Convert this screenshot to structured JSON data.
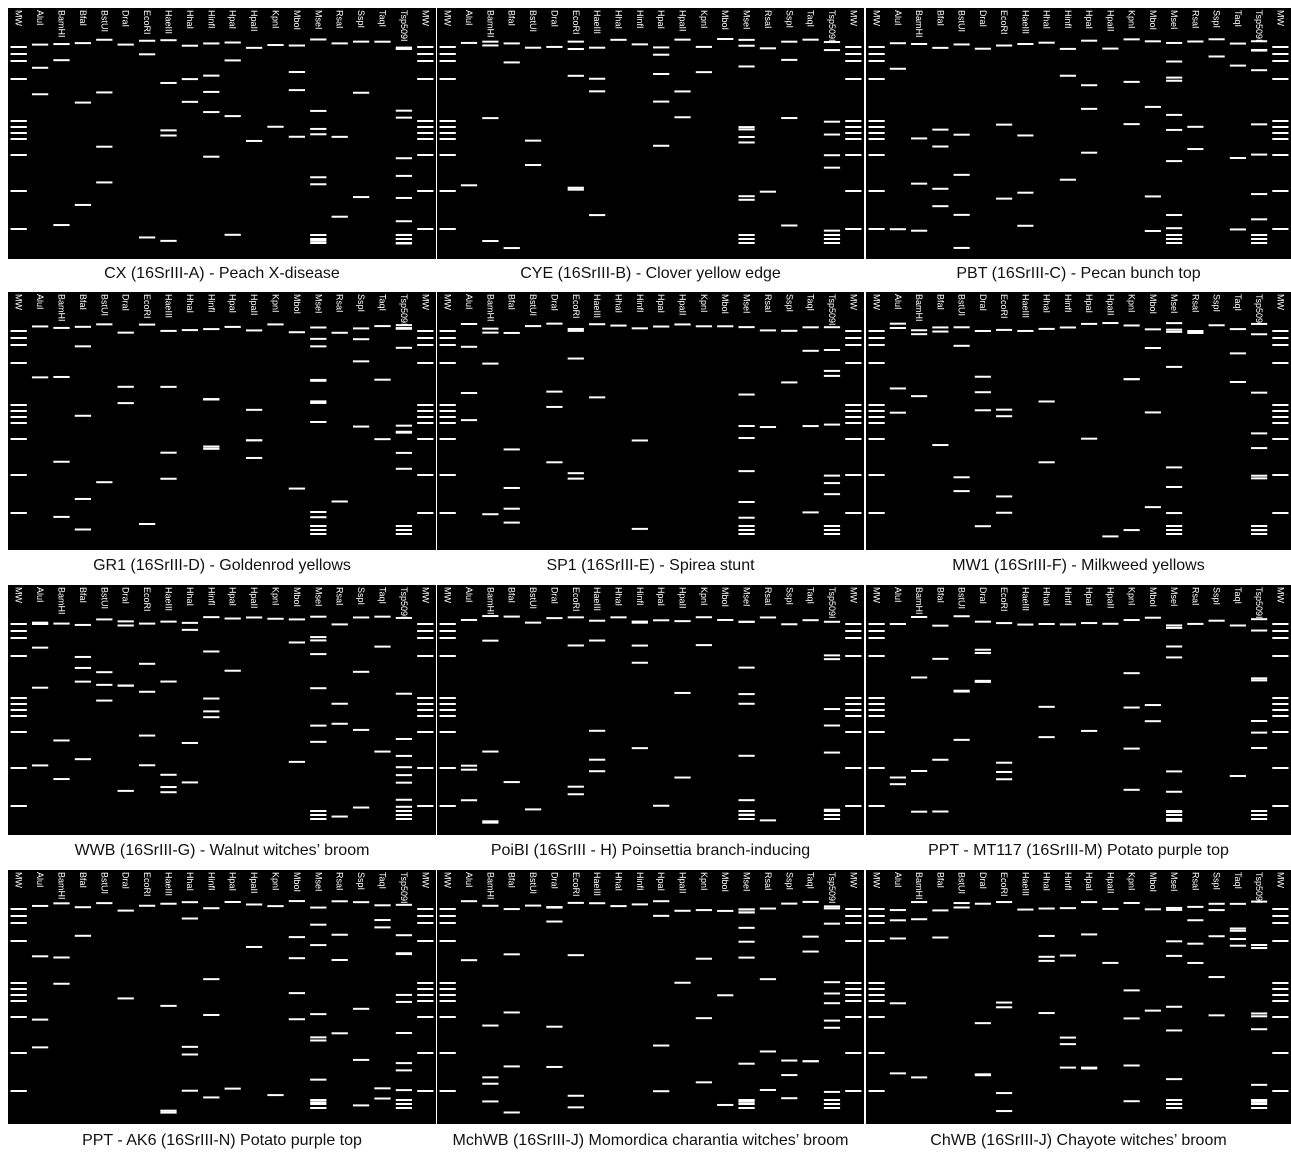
{
  "lanes": [
    "MW",
    "AluI",
    "BamHI",
    "BfaI",
    "BstUI",
    "DraI",
    "EcoRI",
    "HaeIII",
    "HhaI",
    "HinfI",
    "HpaI",
    "HpaII",
    "KpnI",
    "MboI",
    "MseI",
    "RsaI",
    "SspI",
    "TaqI",
    "Tsp509I",
    "MW"
  ],
  "panels": [
    {
      "caption": "CX (16SrIII-A) - Peach X-disease"
    },
    {
      "caption": "CYE (16SrIII-B) - Clover yellow edge"
    },
    {
      "caption": "PBT (16SrIII-C) - Pecan bunch top"
    },
    {
      "caption": "GR1 (16SrIII-D) - Goldenrod yellows"
    },
    {
      "caption": "SP1 (16SrIII-E) - Spirea stunt"
    },
    {
      "caption": "MW1 (16SrIII-F) - Milkweed yellows"
    },
    {
      "caption": "WWB (16SrIII-G) - Walnut witches’ broom"
    },
    {
      "caption": "PoiBI (16SrIII - H) Poinsettia branch-inducing"
    },
    {
      "caption": "PPT - MT117 (16SrIII-M) Potato purple top"
    },
    {
      "caption": "PPT - AK6 (16SrIII-N) Potato purple top"
    },
    {
      "caption": "MchWB (16SrIII-J) Momordica charantia witches’ broom"
    },
    {
      "caption": "ChWB (16SrIII-J) Chayote witches’ broom"
    }
  ]
}
